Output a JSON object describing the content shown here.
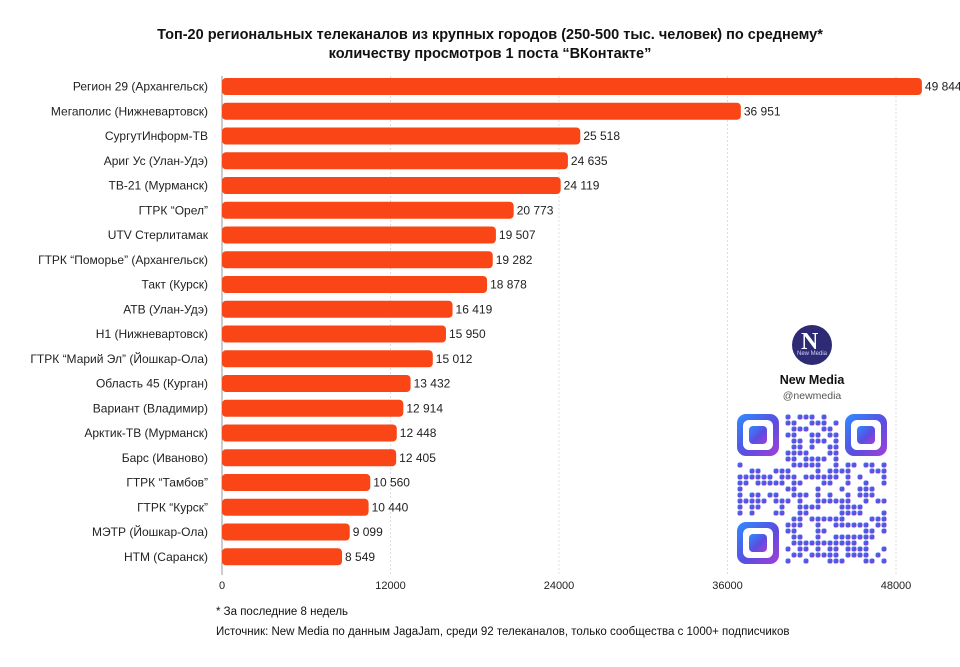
{
  "title_line1": "Топ-20 региональных телеканалов из крупных городов (250-500 тыс. человек) по среднему*",
  "title_line2": "количеству просмотров 1 поста “ВКонтакте”",
  "chart_data": {
    "type": "bar",
    "orientation": "horizontal",
    "categories": [
      "Регион 29 (Архангельск)",
      "Мегаполис (Нижневартовск)",
      "СургутИнформ-ТВ",
      "Ариг Ус (Улан-Удэ)",
      "ТВ-21 (Мурманск)",
      "ГТРК “Орел”",
      "UTV Стерлитамак",
      "ГТРК “Поморье” (Архангельск)",
      "Такт (Курск)",
      "АТВ (Улан-Удэ)",
      "Н1 (Нижневартовск)",
      "ГТРК “Марий Эл” (Йошкар-Ола)",
      "Область 45 (Курган)",
      "Вариант (Владимир)",
      "Арктик-ТВ (Мурманск)",
      "Барс (Иваново)",
      "ГТРК “Тамбов”",
      "ГТРК “Курск”",
      "МЭТР (Йошкар-Ола)",
      "НТМ (Саранск)"
    ],
    "values": [
      49844,
      36951,
      25518,
      24635,
      24119,
      20773,
      19507,
      19282,
      18878,
      16419,
      15950,
      15012,
      13432,
      12914,
      12448,
      12405,
      10560,
      10440,
      9099,
      8549
    ],
    "value_labels": [
      "49 844",
      "36 951",
      "25 518",
      "24 635",
      "24 119",
      "20 773",
      "19 507",
      "19 282",
      "18 878",
      "16 419",
      "15 950",
      "15 012",
      "13 432",
      "12 914",
      "12 448",
      "12 405",
      "10 560",
      "10 440",
      "9 099",
      "8 549"
    ],
    "x_ticks": [
      0,
      12000,
      24000,
      36000,
      48000
    ],
    "x_tick_labels": [
      "0",
      "12000",
      "24000",
      "36000",
      "48000"
    ],
    "xlim": [
      0,
      48000
    ],
    "grid": "vertical",
    "bar_color": "#fa4616"
  },
  "footnote": "* За последние 8 недель",
  "source": "Источник: New Media по данным JagaJam, среди 92 телеканалов, только сообщества с 1000+ подписчиков",
  "brand": {
    "logo_letter": "N",
    "logo_sub": "New Media",
    "name": "New Media",
    "handle": "@newmedia"
  }
}
